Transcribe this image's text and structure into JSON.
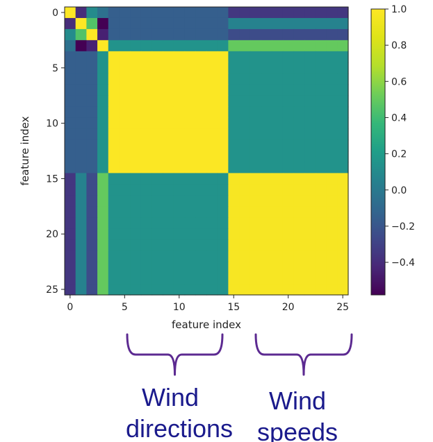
{
  "chart_data": {
    "type": "heatmap",
    "xlabel": "feature index",
    "ylabel": "feature index",
    "xlim": [
      -0.5,
      25.5
    ],
    "ylim": [
      25.5,
      -0.5
    ],
    "x_ticks": [
      "0",
      "5",
      "10",
      "15",
      "20",
      "25"
    ],
    "y_ticks": [
      "0",
      "5",
      "10",
      "15",
      "20",
      "25"
    ],
    "colormap": "viridis",
    "colorbar": {
      "range": [
        -0.58,
        1.0
      ],
      "ticks": [
        "1.0",
        "0.8",
        "0.6",
        "0.4",
        "0.2",
        "0.0",
        "−0.2",
        "−0.4"
      ]
    },
    "size": 26,
    "cell_values_description_blocks": {
      "top_left_4x4": [
        [
          1.0,
          -0.4,
          0.1,
          -0.05
        ],
        [
          -0.4,
          1.0,
          0.45,
          -0.58
        ],
        [
          0.1,
          0.45,
          1.0,
          -0.45
        ],
        [
          -0.05,
          -0.58,
          -0.45,
          1.0
        ]
      ],
      "rows0_3_to_dir": [
        -0.15,
        -0.15,
        -0.15,
        0.15
      ],
      "rows0_3_to_speed": [
        -0.35,
        0.05,
        -0.25,
        0.5
      ],
      "dir_block": 0.99,
      "speed_block": 0.97,
      "dir_speed": 0.15
    }
  },
  "annotations": {
    "brace_left_label_line1": "Wind",
    "brace_left_label_line2": "directions",
    "brace_right_label_line1": "Wind",
    "brace_right_label_line2": "speeds",
    "brace_color": "#5c2a91",
    "label_color": "#1a1a8c"
  }
}
